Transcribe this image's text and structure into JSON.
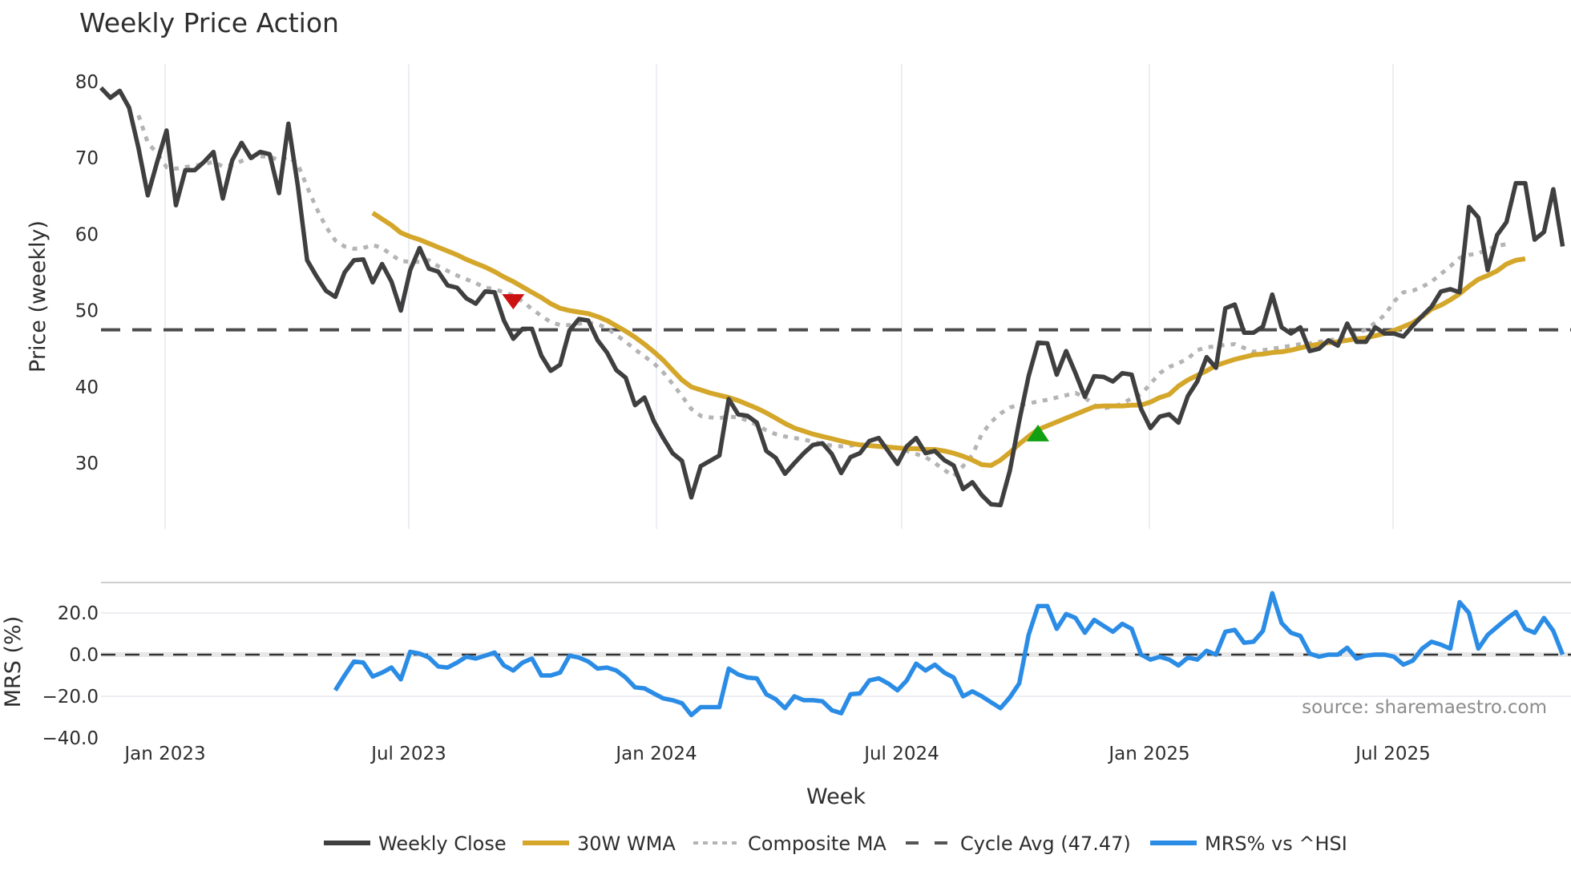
{
  "chart_data": {
    "type": "line",
    "title": "Weekly Price Action",
    "source_note": "source: sharemaestro.com",
    "xlabel": "Week",
    "x_ticks": [
      "Jan 2023",
      "Jul 2023",
      "Jan 2024",
      "Jul 2024",
      "Jan 2025",
      "Jul 2025"
    ],
    "grid": true,
    "legend_position": "bottom",
    "panels": [
      {
        "name": "price",
        "ylabel": "Price (weekly)",
        "y_ticks": [
          "80",
          "70",
          "60",
          "50",
          "40",
          "30"
        ],
        "ylim": [
          21,
          81
        ],
        "reference_line": {
          "label": "Cycle Avg (47.47)",
          "value": 47.47
        },
        "markers": [
          {
            "type": "sell",
            "shape": "triangle-down",
            "color": "#cc1111",
            "week_index": 44,
            "value": 51.2
          },
          {
            "type": "buy",
            "shape": "triangle-up",
            "color": "#11a011",
            "week_index": 100,
            "value": 33.8
          }
        ]
      },
      {
        "name": "mrs",
        "ylabel": "MRS (%)",
        "y_ticks": [
          "20.0",
          "0.0",
          "−20.0",
          "−40.0"
        ],
        "ylim": [
          -40,
          34
        ],
        "reference_line": {
          "value": 0
        }
      }
    ],
    "series": [
      {
        "name": "Weekly Close",
        "panel": "price",
        "color": "#3f3f3f",
        "style": "solid",
        "start_index": 0,
        "values": [
          79.2,
          77.9,
          78.8,
          76.6,
          71.3,
          65.1,
          69.5,
          73.6,
          63.8,
          68.4,
          68.4,
          69.5,
          70.8,
          64.7,
          69.7,
          72.0,
          70.0,
          70.8,
          70.5,
          65.4,
          74.5,
          66.4,
          56.6,
          54.5,
          52.6,
          51.8,
          55.0,
          56.6,
          56.7,
          53.7,
          56.1,
          53.8,
          50.0,
          55.3,
          58.2,
          55.5,
          55.1,
          53.3,
          53.0,
          51.6,
          50.9,
          52.5,
          52.4,
          48.7,
          46.3,
          47.6,
          47.6,
          44.1,
          42.1,
          42.9,
          47.4,
          48.9,
          48.7,
          46.1,
          44.5,
          42.2,
          41.2,
          37.6,
          38.6,
          35.5,
          33.3,
          31.3,
          30.3,
          25.5,
          29.6,
          30.3,
          31.0,
          38.4,
          36.4,
          36.2,
          35.3,
          31.6,
          30.7,
          28.6,
          30.0,
          31.3,
          32.4,
          32.6,
          31.2,
          28.7,
          30.8,
          31.3,
          32.9,
          33.3,
          31.6,
          29.9,
          32.2,
          33.3,
          31.3,
          31.6,
          30.4,
          29.7,
          26.6,
          27.5,
          25.8,
          24.6,
          24.5,
          29.0,
          35.5,
          41.4,
          45.8,
          45.7,
          41.6,
          44.7,
          41.8,
          38.7,
          41.4,
          41.3,
          40.7,
          41.8,
          41.6,
          37.1,
          34.6,
          36.1,
          36.4,
          35.3,
          38.8,
          40.7,
          43.9,
          42.5,
          50.3,
          50.8,
          47.1,
          47.1,
          47.9,
          52.1,
          47.8,
          47.0,
          47.8,
          44.7,
          45.0,
          46.1,
          45.4,
          48.3,
          45.9,
          45.9,
          47.8,
          47.0,
          47.0,
          46.6,
          48.0,
          49.3,
          50.5,
          52.5,
          52.8,
          52.4,
          63.6,
          62.2,
          55.3,
          59.9,
          61.6,
          66.7,
          66.7,
          59.3,
          60.3,
          65.9,
          58.4
        ]
      },
      {
        "name": "30W WMA",
        "panel": "price",
        "color": "#d4a62a",
        "style": "solid",
        "start_index": 29,
        "values": [
          62.8,
          62.0,
          61.2,
          60.2,
          59.7,
          59.3,
          58.8,
          58.3,
          57.8,
          57.3,
          56.7,
          56.2,
          55.7,
          55.1,
          54.4,
          53.8,
          53.1,
          52.4,
          51.7,
          50.9,
          50.3,
          50.0,
          49.8,
          49.6,
          49.2,
          48.7,
          48.0,
          47.3,
          46.5,
          45.6,
          44.6,
          43.5,
          42.2,
          40.9,
          40.0,
          39.6,
          39.2,
          38.9,
          38.6,
          38.2,
          37.7,
          37.2,
          36.6,
          35.9,
          35.2,
          34.6,
          34.2,
          33.8,
          33.5,
          33.2,
          32.9,
          32.6,
          32.4,
          32.3,
          32.2,
          32.1,
          32.0,
          31.9,
          31.9,
          31.8,
          31.8,
          31.6,
          31.3,
          30.9,
          30.4,
          29.8,
          29.7,
          30.4,
          31.4,
          32.5,
          33.5,
          34.4,
          34.9,
          35.4,
          35.9,
          36.4,
          36.9,
          37.4,
          37.5,
          37.5,
          37.5,
          37.6,
          37.6,
          38.0,
          38.6,
          39.0,
          40.1,
          40.9,
          41.5,
          42.1,
          42.8,
          43.2,
          43.6,
          43.9,
          44.2,
          44.3,
          44.5,
          44.6,
          44.8,
          45.1,
          45.4,
          45.6,
          45.8,
          45.9,
          46.1,
          46.3,
          46.4,
          46.7,
          47.0,
          47.4,
          47.9,
          48.4,
          49.2,
          50.2,
          50.7,
          51.4,
          52.2,
          53.2,
          54.1,
          54.6,
          55.2,
          56.1,
          56.6,
          56.8
        ]
      },
      {
        "name": "Composite MA",
        "panel": "price",
        "color": "#b4b4b4",
        "style": "dotted",
        "start_index": 4,
        "values": [
          75.6,
          72.0,
          70.6,
          68.8,
          68.6,
          68.8,
          69.0,
          69.2,
          69.5,
          68.9,
          69.1,
          69.6,
          70.0,
          70.2,
          70.2,
          69.7,
          70.2,
          69.2,
          66.2,
          63.4,
          61.0,
          59.2,
          58.4,
          58.1,
          58.2,
          58.6,
          58.2,
          57.3,
          56.5,
          56.4,
          56.4,
          56.6,
          55.8,
          55.2,
          54.6,
          54.1,
          53.6,
          53.0,
          52.8,
          52.4,
          52.0,
          51.2,
          50.2,
          49.3,
          48.5,
          48.1,
          48.1,
          48.3,
          48.4,
          48.2,
          47.7,
          46.8,
          45.9,
          44.9,
          44.0,
          43.1,
          41.9,
          40.4,
          38.8,
          37.1,
          36.2,
          36.0,
          35.9,
          36.1,
          36.0,
          35.6,
          35.0,
          34.3,
          33.8,
          33.5,
          33.3,
          33.1,
          32.8,
          32.5,
          32.3,
          32.2,
          32.3,
          32.5,
          32.3,
          32.3,
          32.2,
          32.0,
          31.6,
          31.2,
          30.8,
          30.0,
          29.1,
          28.3,
          29.6,
          31.1,
          33.8,
          35.4,
          36.5,
          37.3,
          37.6,
          37.8,
          38.1,
          38.3,
          38.6,
          38.9,
          39.2,
          38.6,
          37.6,
          37.2,
          37.4,
          37.8,
          38.5,
          39.0,
          40.4,
          41.8,
          42.6,
          43.1,
          43.7,
          44.8,
          45.2,
          45.3,
          45.5,
          45.6,
          45.1,
          44.6,
          44.8,
          45.0,
          45.2,
          45.4,
          45.6,
          45.7,
          45.9,
          46.1,
          46.3,
          46.6,
          47.0,
          47.5,
          48.4,
          49.4,
          51.2,
          52.4,
          52.6,
          53.1,
          53.8,
          54.8,
          55.8,
          56.9,
          57.3,
          57.5,
          58.0,
          58.5,
          58.7
        ]
      },
      {
        "name": "Cycle Avg (47.47)",
        "panel": "price",
        "color": "#4a4a4a",
        "style": "dashed",
        "constant": 47.47
      },
      {
        "name": "MRS% vs ^HSI",
        "panel": "mrs",
        "color": "#2b8ce6",
        "style": "solid",
        "start_index": 25,
        "values": [
          -17.1,
          -10.0,
          -3.3,
          -3.8,
          -10.5,
          -8.6,
          -6.2,
          -11.9,
          1.4,
          0.5,
          -1.4,
          -5.7,
          -6.2,
          -3.8,
          -1.0,
          -1.9,
          -0.5,
          1.0,
          -5.2,
          -7.6,
          -3.8,
          -1.9,
          -10.0,
          -10.0,
          -8.6,
          -0.5,
          -1.4,
          -3.3,
          -6.7,
          -6.2,
          -7.6,
          -11.0,
          -15.7,
          -16.2,
          -18.6,
          -21.0,
          -21.9,
          -23.3,
          -29.0,
          -25.2,
          -25.2,
          -25.2,
          -6.7,
          -9.5,
          -11.0,
          -11.4,
          -19.0,
          -21.4,
          -25.7,
          -20.0,
          -21.9,
          -21.9,
          -22.4,
          -26.7,
          -28.1,
          -19.0,
          -18.6,
          -12.4,
          -11.4,
          -13.8,
          -17.1,
          -12.4,
          -4.3,
          -7.6,
          -4.8,
          -8.6,
          -11.0,
          -20.0,
          -17.6,
          -20.0,
          -22.9,
          -25.7,
          -20.5,
          -13.8,
          9.5,
          23.3,
          23.3,
          12.4,
          19.5,
          17.6,
          10.5,
          16.7,
          13.8,
          11.0,
          14.8,
          12.4,
          0.0,
          -2.4,
          -1.0,
          -2.4,
          -5.2,
          -1.4,
          -2.4,
          1.9,
          0.0,
          11.0,
          11.9,
          5.7,
          6.2,
          11.4,
          29.5,
          15.2,
          10.5,
          9.0,
          0.5,
          -1.0,
          0.0,
          0.0,
          3.3,
          -1.9,
          -0.5,
          0.0,
          0.0,
          -1.0,
          -4.8,
          -2.9,
          2.9,
          6.2,
          4.8,
          2.9,
          25.2,
          20.0,
          2.9,
          9.5,
          13.3,
          17.1,
          20.5,
          12.4,
          10.5,
          17.6,
          11.4,
          0.0
        ]
      }
    ]
  }
}
